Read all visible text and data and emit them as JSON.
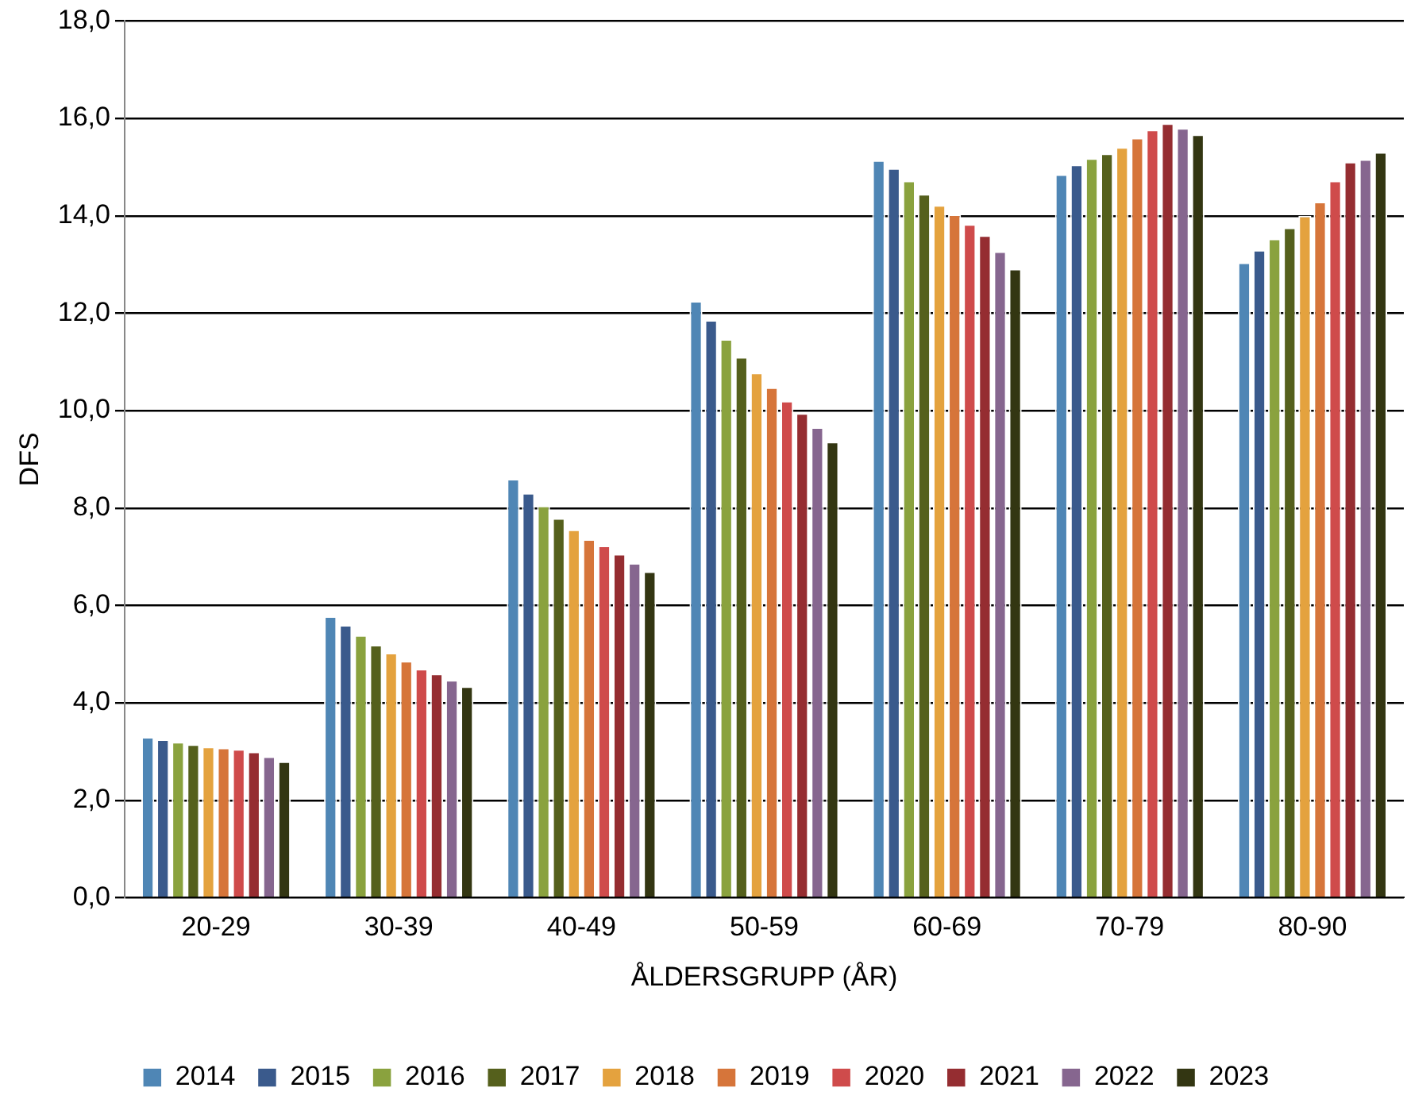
{
  "chart_data": {
    "type": "bar",
    "xlabel": "ÅLDERSGRUPP (ÅR)",
    "ylabel": "DFS",
    "categories": [
      "20-29",
      "30-39",
      "40-49",
      "50-59",
      "60-69",
      "70-79",
      "80-90"
    ],
    "ylim": [
      0,
      18
    ],
    "yticks": [
      {
        "value": 0,
        "label": "0,0"
      },
      {
        "value": 2,
        "label": "2,0"
      },
      {
        "value": 4,
        "label": "4,0"
      },
      {
        "value": 6,
        "label": "6,0"
      },
      {
        "value": 8,
        "label": "8,0"
      },
      {
        "value": 10,
        "label": "10,0"
      },
      {
        "value": 12,
        "label": "12,0"
      },
      {
        "value": 14,
        "label": "14,0"
      },
      {
        "value": 16,
        "label": "16,0"
      },
      {
        "value": 18,
        "label": "18,0"
      }
    ],
    "grid": "y",
    "legend": "bottom",
    "series": [
      {
        "name": "2014",
        "color": "#4f86b5",
        "values": [
          3.3,
          5.78,
          8.6,
          12.25,
          15.14,
          14.85,
          13.04
        ]
      },
      {
        "name": "2015",
        "color": "#3a5a8c",
        "values": [
          3.25,
          5.6,
          8.31,
          11.86,
          14.98,
          15.05,
          13.3
        ]
      },
      {
        "name": "2016",
        "color": "#8aa23e",
        "values": [
          3.2,
          5.39,
          8.05,
          11.47,
          14.72,
          15.18,
          13.53
        ]
      },
      {
        "name": "2017",
        "color": "#55601c",
        "values": [
          3.15,
          5.19,
          7.79,
          11.1,
          14.45,
          15.28,
          13.76
        ]
      },
      {
        "name": "2018",
        "color": "#e4a23e",
        "values": [
          3.1,
          5.03,
          7.56,
          10.78,
          14.22,
          15.41,
          14.0
        ]
      },
      {
        "name": "2019",
        "color": "#d6753a",
        "values": [
          3.08,
          4.86,
          7.36,
          10.48,
          14.03,
          15.6,
          14.29
        ]
      },
      {
        "name": "2020",
        "color": "#cf4b4b",
        "values": [
          3.05,
          4.7,
          7.23,
          10.2,
          13.83,
          15.77,
          14.72
        ]
      },
      {
        "name": "2021",
        "color": "#952d31",
        "values": [
          3.0,
          4.6,
          7.06,
          9.95,
          13.6,
          15.9,
          15.11
        ]
      },
      {
        "name": "2022",
        "color": "#86668f",
        "values": [
          2.9,
          4.47,
          6.87,
          9.66,
          13.27,
          15.8,
          15.16
        ]
      },
      {
        "name": "2023",
        "color": "#333612",
        "values": [
          2.8,
          4.34,
          6.7,
          9.36,
          12.91,
          15.67,
          15.31
        ]
      }
    ]
  }
}
